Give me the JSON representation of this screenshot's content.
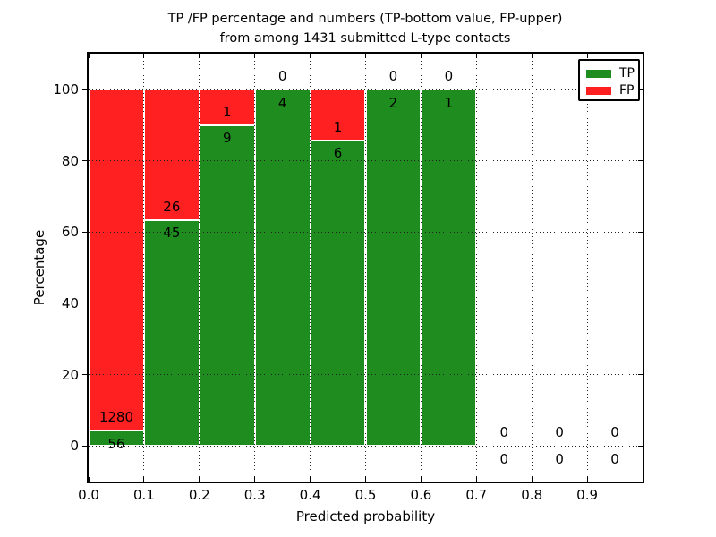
{
  "chart_data": {
    "type": "bar",
    "stacked": true,
    "normalized_to_percent": true,
    "title_line1": "TP /FP percentage and numbers (TP-bottom value, FP-upper)",
    "title_line2": "from among 1431 submitted L-type contacts",
    "xlabel": "Predicted probability",
    "ylabel": "Percentage",
    "xlim": [
      0.0,
      1.0
    ],
    "ylim": [
      -10,
      110
    ],
    "grid": "dotted",
    "legend_position": "upper-right",
    "bin_edges": [
      0.0,
      0.1,
      0.2,
      0.3,
      0.4,
      0.5,
      0.6,
      0.7,
      0.8,
      0.9,
      1.0
    ],
    "xticks": [
      {
        "value": 0.0,
        "label": "0.0"
      },
      {
        "value": 0.1,
        "label": "0.1"
      },
      {
        "value": 0.2,
        "label": "0.2"
      },
      {
        "value": 0.3,
        "label": "0.3"
      },
      {
        "value": 0.4,
        "label": "0.4"
      },
      {
        "value": 0.5,
        "label": "0.5"
      },
      {
        "value": 0.6,
        "label": "0.6"
      },
      {
        "value": 0.7,
        "label": "0.7"
      },
      {
        "value": 0.8,
        "label": "0.8"
      },
      {
        "value": 0.9,
        "label": "0.9"
      }
    ],
    "yticks": [
      {
        "value": 0,
        "label": "0"
      },
      {
        "value": 20,
        "label": "20"
      },
      {
        "value": 40,
        "label": "40"
      },
      {
        "value": 60,
        "label": "60"
      },
      {
        "value": 80,
        "label": "80"
      },
      {
        "value": 100,
        "label": "100"
      }
    ],
    "series": [
      {
        "name": "TP",
        "color": "#1e8c1e",
        "values": [
          56,
          45,
          9,
          4,
          6,
          2,
          1,
          0,
          0,
          0
        ]
      },
      {
        "name": "FP",
        "color": "#ff2121",
        "values": [
          1280,
          26,
          1,
          0,
          1,
          0,
          0,
          0,
          0,
          0
        ]
      }
    ],
    "legend": [
      {
        "label": "TP",
        "color": "#1e8c1e"
      },
      {
        "label": "FP",
        "color": "#ff2121"
      }
    ],
    "colors": {
      "tp": "#1e8c1e",
      "fp": "#ff2121",
      "grid": "#222222",
      "spine": "#000000",
      "background": "#ffffff",
      "text": "#000000"
    }
  }
}
